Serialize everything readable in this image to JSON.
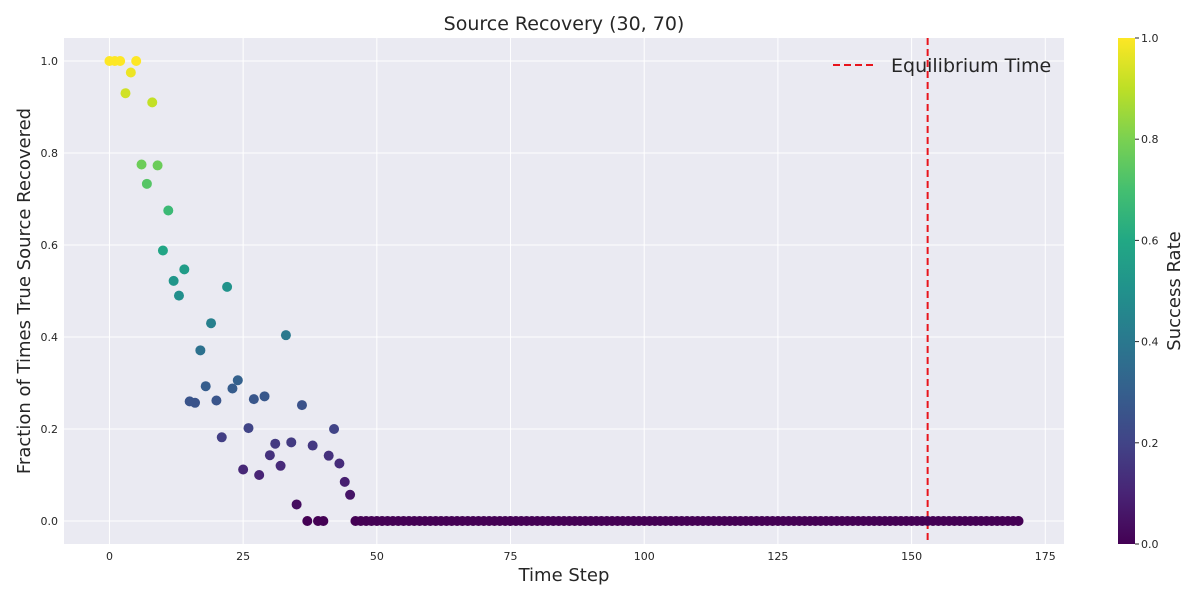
{
  "chart_data": {
    "type": "scatter",
    "title": "Source Recovery (30, 70)",
    "xlabel": "Time Step",
    "ylabel": "Fraction of Times True Source Recovered",
    "xlim": [
      -8.5,
      178.5
    ],
    "ylim": [
      -0.05,
      1.05
    ],
    "xticks": [
      0,
      25,
      50,
      75,
      100,
      125,
      150,
      175
    ],
    "yticks": [
      0.0,
      0.2,
      0.4,
      0.6,
      0.8,
      1.0
    ],
    "grid": true,
    "colormap": "viridis",
    "marker_color": "value of y (success rate)",
    "equilibrium_time": 153,
    "legend": {
      "position": "top-right",
      "entries": [
        "Equilibrium Time"
      ]
    },
    "colorbar": {
      "label": "Success Rate",
      "range": [
        0.0,
        1.0
      ],
      "ticks": [
        0.0,
        0.2,
        0.4,
        0.6,
        0.8,
        1.0
      ]
    },
    "colors": {
      "plot_background": "#eaeaf2",
      "grid": "#ffffff",
      "equilibrium_line": "#e8141c"
    },
    "points": [
      [
        0,
        1.0
      ],
      [
        1,
        1.0
      ],
      [
        2,
        1.0
      ],
      [
        3,
        0.93
      ],
      [
        4,
        0.975
      ],
      [
        5,
        1.0
      ],
      [
        6,
        0.775
      ],
      [
        7,
        0.733
      ],
      [
        8,
        0.91
      ],
      [
        9,
        0.773
      ],
      [
        10,
        0.588
      ],
      [
        11,
        0.675
      ],
      [
        12,
        0.522
      ],
      [
        13,
        0.49
      ],
      [
        14,
        0.547
      ],
      [
        15,
        0.26
      ],
      [
        16,
        0.257
      ],
      [
        17,
        0.371
      ],
      [
        18,
        0.293
      ],
      [
        19,
        0.43
      ],
      [
        20,
        0.262
      ],
      [
        21,
        0.182
      ],
      [
        22,
        0.509
      ],
      [
        23,
        0.288
      ],
      [
        24,
        0.306
      ],
      [
        25,
        0.112
      ],
      [
        26,
        0.202
      ],
      [
        27,
        0.265
      ],
      [
        28,
        0.1
      ],
      [
        29,
        0.271
      ],
      [
        30,
        0.143
      ],
      [
        31,
        0.168
      ],
      [
        32,
        0.12
      ],
      [
        33,
        0.404
      ],
      [
        34,
        0.171
      ],
      [
        35,
        0.036
      ],
      [
        36,
        0.252
      ],
      [
        37,
        0.0
      ],
      [
        38,
        0.164
      ],
      [
        39,
        0.0
      ],
      [
        40,
        0.0
      ],
      [
        41,
        0.142
      ],
      [
        42,
        0.2
      ],
      [
        43,
        0.125
      ],
      [
        44,
        0.085
      ],
      [
        45,
        0.057
      ],
      [
        46,
        0.0
      ],
      [
        47,
        0.0
      ],
      [
        48,
        0.0
      ],
      [
        49,
        0.0
      ],
      [
        50,
        0.0
      ],
      [
        51,
        0.0
      ],
      [
        52,
        0.0
      ],
      [
        53,
        0.0
      ],
      [
        54,
        0.0
      ],
      [
        55,
        0.0
      ],
      [
        56,
        0.0
      ],
      [
        57,
        0.0
      ],
      [
        58,
        0.0
      ],
      [
        59,
        0.0
      ],
      [
        60,
        0.0
      ],
      [
        61,
        0.0
      ],
      [
        62,
        0.0
      ],
      [
        63,
        0.0
      ],
      [
        64,
        0.0
      ],
      [
        65,
        0.0
      ],
      [
        66,
        0.0
      ],
      [
        67,
        0.0
      ],
      [
        68,
        0.0
      ],
      [
        69,
        0.0
      ],
      [
        70,
        0.0
      ],
      [
        71,
        0.0
      ],
      [
        72,
        0.0
      ],
      [
        73,
        0.0
      ],
      [
        74,
        0.0
      ],
      [
        75,
        0.0
      ],
      [
        76,
        0.0
      ],
      [
        77,
        0.0
      ],
      [
        78,
        0.0
      ],
      [
        79,
        0.0
      ],
      [
        80,
        0.0
      ],
      [
        81,
        0.0
      ],
      [
        82,
        0.0
      ],
      [
        83,
        0.0
      ],
      [
        84,
        0.0
      ],
      [
        85,
        0.0
      ],
      [
        86,
        0.0
      ],
      [
        87,
        0.0
      ],
      [
        88,
        0.0
      ],
      [
        89,
        0.0
      ],
      [
        90,
        0.0
      ],
      [
        91,
        0.0
      ],
      [
        92,
        0.0
      ],
      [
        93,
        0.0
      ],
      [
        94,
        0.0
      ],
      [
        95,
        0.0
      ],
      [
        96,
        0.0
      ],
      [
        97,
        0.0
      ],
      [
        98,
        0.0
      ],
      [
        99,
        0.0
      ],
      [
        100,
        0.0
      ],
      [
        101,
        0.0
      ],
      [
        102,
        0.0
      ],
      [
        103,
        0.0
      ],
      [
        104,
        0.0
      ],
      [
        105,
        0.0
      ],
      [
        106,
        0.0
      ],
      [
        107,
        0.0
      ],
      [
        108,
        0.0
      ],
      [
        109,
        0.0
      ],
      [
        110,
        0.0
      ],
      [
        111,
        0.0
      ],
      [
        112,
        0.0
      ],
      [
        113,
        0.0
      ],
      [
        114,
        0.0
      ],
      [
        115,
        0.0
      ],
      [
        116,
        0.0
      ],
      [
        117,
        0.0
      ],
      [
        118,
        0.0
      ],
      [
        119,
        0.0
      ],
      [
        120,
        0.0
      ],
      [
        121,
        0.0
      ],
      [
        122,
        0.0
      ],
      [
        123,
        0.0
      ],
      [
        124,
        0.0
      ],
      [
        125,
        0.0
      ],
      [
        126,
        0.0
      ],
      [
        127,
        0.0
      ],
      [
        128,
        0.0
      ],
      [
        129,
        0.0
      ],
      [
        130,
        0.0
      ],
      [
        131,
        0.0
      ],
      [
        132,
        0.0
      ],
      [
        133,
        0.0
      ],
      [
        134,
        0.0
      ],
      [
        135,
        0.0
      ],
      [
        136,
        0.0
      ],
      [
        137,
        0.0
      ],
      [
        138,
        0.0
      ],
      [
        139,
        0.0
      ],
      [
        140,
        0.0
      ],
      [
        141,
        0.0
      ],
      [
        142,
        0.0
      ],
      [
        143,
        0.0
      ],
      [
        144,
        0.0
      ],
      [
        145,
        0.0
      ],
      [
        146,
        0.0
      ],
      [
        147,
        0.0
      ],
      [
        148,
        0.0
      ],
      [
        149,
        0.0
      ],
      [
        150,
        0.0
      ],
      [
        151,
        0.0
      ],
      [
        152,
        0.0
      ],
      [
        153,
        0.0
      ],
      [
        154,
        0.0
      ],
      [
        155,
        0.0
      ],
      [
        156,
        0.0
      ],
      [
        157,
        0.0
      ],
      [
        158,
        0.0
      ],
      [
        159,
        0.0
      ],
      [
        160,
        0.0
      ],
      [
        161,
        0.0
      ],
      [
        162,
        0.0
      ],
      [
        163,
        0.0
      ],
      [
        164,
        0.0
      ],
      [
        165,
        0.0
      ],
      [
        166,
        0.0
      ],
      [
        167,
        0.0
      ],
      [
        168,
        0.0
      ],
      [
        169,
        0.0
      ],
      [
        170,
        0.0
      ]
    ]
  }
}
